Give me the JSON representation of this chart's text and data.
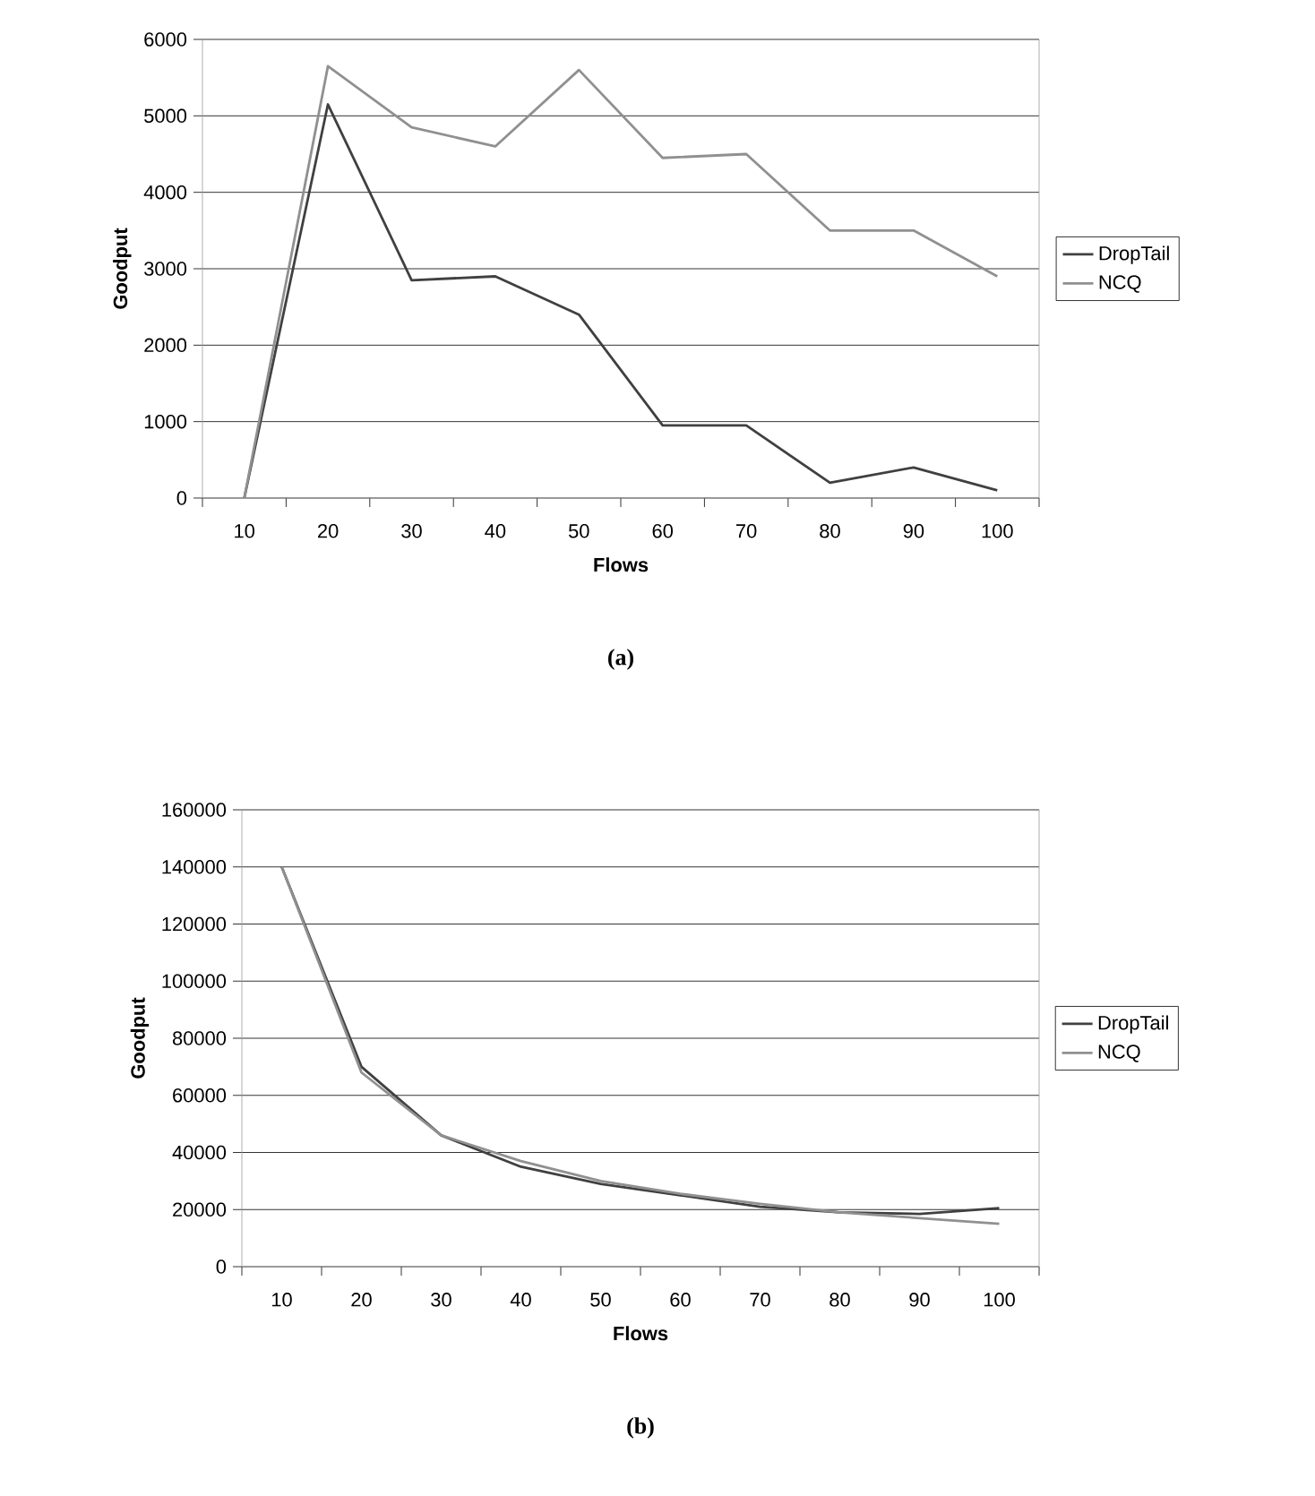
{
  "chart_data": [
    {
      "type": "line",
      "xlabel": "Flows",
      "ylabel": "Goodput",
      "categories": [
        "10",
        "20",
        "30",
        "40",
        "50",
        "60",
        "70",
        "80",
        "90",
        "100"
      ],
      "series": [
        {
          "name": "DropTail",
          "color": "#404040",
          "values": [
            0,
            5150,
            2850,
            2900,
            2400,
            950,
            950,
            200,
            400,
            100
          ]
        },
        {
          "name": "NCQ",
          "color": "#909090",
          "values": [
            0,
            5650,
            4850,
            4600,
            5600,
            4450,
            4500,
            3500,
            3500,
            2900
          ]
        }
      ],
      "ylim": [
        0,
        6000
      ],
      "yticks": [
        0,
        1000,
        2000,
        3000,
        4000,
        5000,
        6000
      ],
      "grid": "y",
      "legend": "right",
      "annotations": [
        "(a)"
      ]
    },
    {
      "type": "line",
      "xlabel": "Flows",
      "ylabel": "Goodput",
      "categories": [
        "10",
        "20",
        "30",
        "40",
        "50",
        "60",
        "70",
        "80",
        "90",
        "100"
      ],
      "series": [
        {
          "name": "DropTail",
          "color": "#404040",
          "values": [
            140000,
            70000,
            46000,
            35000,
            29000,
            25000,
            21000,
            19000,
            18500,
            20500
          ]
        },
        {
          "name": "NCQ",
          "color": "#909090",
          "values": [
            140000,
            68000,
            46000,
            37000,
            30000,
            25500,
            22000,
            19000,
            17000,
            15000
          ]
        }
      ],
      "ylim": [
        0,
        160000
      ],
      "yticks": [
        0,
        20000,
        40000,
        60000,
        80000,
        100000,
        120000,
        140000,
        160000
      ],
      "grid": "y",
      "legend": "right",
      "annotations": [
        "(b)"
      ]
    }
  ]
}
